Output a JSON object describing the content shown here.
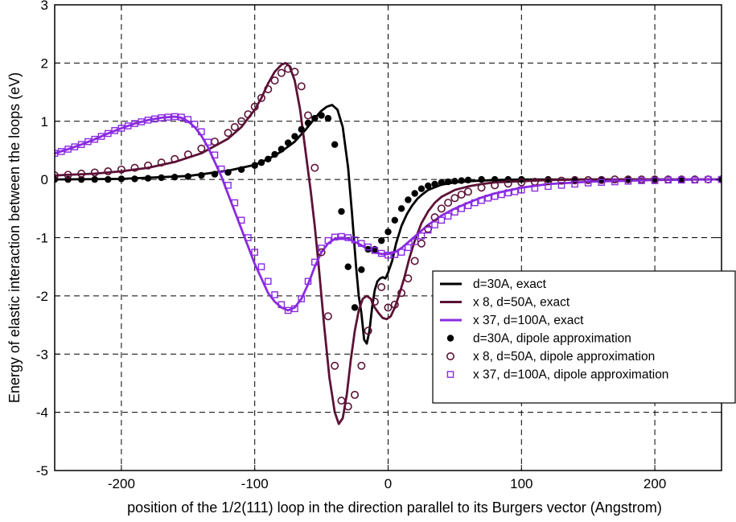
{
  "chart_data": {
    "type": "line",
    "title": "",
    "xlabel": "position of the 1/2(111) loop in the direction parallel to its Burgers vector (Angstrom)",
    "ylabel": "Energy of elastic interaction between the loops (eV)",
    "xlim": [
      -250,
      250
    ],
    "ylim": [
      -5,
      3
    ],
    "xticks": [
      -200,
      -100,
      0,
      100,
      200
    ],
    "yticks": [
      -5,
      -4,
      -3,
      -2,
      -1,
      0,
      1,
      2,
      3
    ],
    "grid": true,
    "legend_position": "lower-right",
    "series": [
      {
        "name": "d=30A, exact",
        "style": "line",
        "color": "#000000",
        "x": [
          -250,
          -200,
          -150,
          -120,
          -100,
          -90,
          -80,
          -70,
          -62,
          -55,
          -50,
          -46,
          -42,
          -38,
          -34,
          -30,
          -27,
          -24,
          -22,
          -20,
          -18,
          -16,
          -14,
          -12,
          -10,
          -8,
          -6,
          -4,
          -2,
          0,
          3,
          6,
          10,
          14,
          18,
          22,
          26,
          30,
          40,
          50,
          60,
          80,
          100,
          150,
          200,
          250
        ],
        "y": [
          0.0,
          0.01,
          0.06,
          0.15,
          0.25,
          0.35,
          0.48,
          0.65,
          0.85,
          1.05,
          1.18,
          1.25,
          1.28,
          1.2,
          0.9,
          0.2,
          -0.6,
          -1.5,
          -2.0,
          -2.3,
          -2.75,
          -2.82,
          -2.6,
          -2.2,
          -1.9,
          -1.75,
          -1.7,
          -1.68,
          -1.7,
          -1.6,
          -1.4,
          -1.1,
          -0.8,
          -0.6,
          -0.45,
          -0.33,
          -0.25,
          -0.18,
          -0.09,
          -0.05,
          -0.03,
          -0.01,
          0.0,
          0.0,
          0.0,
          0.0
        ]
      },
      {
        "name": "x 8, d=50A, exact",
        "style": "line",
        "color": "#5c1236",
        "x": [
          -250,
          -220,
          -200,
          -180,
          -160,
          -140,
          -120,
          -110,
          -100,
          -95,
          -90,
          -85,
          -80,
          -77,
          -74,
          -70,
          -66,
          -62,
          -58,
          -55,
          -52,
          -48,
          -44,
          -40,
          -37,
          -34,
          -31,
          -28,
          -25,
          -22,
          -19,
          -16,
          -13,
          -10,
          -7,
          -4,
          -1,
          2,
          5,
          8,
          12,
          16,
          20,
          25,
          30,
          35,
          40,
          50,
          60,
          70,
          80,
          100,
          120,
          150,
          200,
          250
        ],
        "y": [
          0.07,
          0.1,
          0.14,
          0.2,
          0.3,
          0.45,
          0.7,
          0.9,
          1.2,
          1.4,
          1.65,
          1.85,
          1.97,
          2.0,
          1.95,
          1.7,
          1.2,
          0.5,
          -0.2,
          -0.8,
          -1.5,
          -2.5,
          -3.4,
          -4.0,
          -4.2,
          -4.1,
          -3.7,
          -3.1,
          -2.6,
          -2.25,
          -2.05,
          -2.0,
          -2.05,
          -2.2,
          -2.3,
          -2.38,
          -2.4,
          -2.35,
          -2.2,
          -2.0,
          -1.7,
          -1.35,
          -1.05,
          -0.75,
          -0.55,
          -0.4,
          -0.3,
          -0.18,
          -0.12,
          -0.08,
          -0.05,
          -0.03,
          -0.01,
          0.0,
          0.0,
          0.0
        ]
      },
      {
        "name": "x 37, d=100A, exact",
        "style": "line",
        "color": "#8a2be2",
        "x": [
          -250,
          -240,
          -230,
          -220,
          -210,
          -200,
          -190,
          -180,
          -170,
          -160,
          -155,
          -150,
          -145,
          -140,
          -135,
          -130,
          -125,
          -120,
          -115,
          -110,
          -105,
          -100,
          -95,
          -90,
          -85,
          -80,
          -75,
          -70,
          -65,
          -60,
          -55,
          -50,
          -45,
          -40,
          -35,
          -30,
          -25,
          -20,
          -15,
          -10,
          -5,
          0,
          5,
          10,
          15,
          20,
          25,
          30,
          40,
          50,
          60,
          70,
          80,
          100,
          120,
          150,
          200,
          250
        ],
        "y": [
          0.45,
          0.52,
          0.6,
          0.69,
          0.79,
          0.88,
          0.96,
          1.02,
          1.06,
          1.08,
          1.06,
          1.0,
          0.9,
          0.75,
          0.55,
          0.3,
          0.05,
          -0.25,
          -0.55,
          -0.85,
          -1.15,
          -1.45,
          -1.7,
          -1.95,
          -2.1,
          -2.2,
          -2.25,
          -2.2,
          -2.05,
          -1.8,
          -1.5,
          -1.25,
          -1.1,
          -1.02,
          -1.0,
          -1.02,
          -1.07,
          -1.13,
          -1.2,
          -1.25,
          -1.28,
          -1.28,
          -1.25,
          -1.18,
          -1.08,
          -0.98,
          -0.88,
          -0.78,
          -0.62,
          -0.5,
          -0.4,
          -0.31,
          -0.24,
          -0.14,
          -0.08,
          -0.04,
          -0.01,
          0.0
        ]
      },
      {
        "name": "d=30A, dipole approximation",
        "style": "filled-circle",
        "color": "#000000",
        "x": [
          -250,
          -240,
          -230,
          -220,
          -210,
          -200,
          -190,
          -180,
          -170,
          -160,
          -150,
          -140,
          -130,
          -120,
          -110,
          -100,
          -95,
          -90,
          -85,
          -80,
          -75,
          -70,
          -65,
          -60,
          -55,
          -50,
          -45,
          -40,
          -35,
          -30,
          -25,
          -20,
          -15,
          -10,
          -5,
          0,
          5,
          10,
          15,
          20,
          25,
          30,
          35,
          40,
          45,
          50,
          55,
          60,
          70,
          80,
          90,
          100,
          120,
          140,
          160,
          180,
          200,
          220,
          250
        ],
        "y": [
          0.0,
          0.0,
          0.0,
          0.0,
          0.0,
          0.01,
          0.01,
          0.02,
          0.03,
          0.04,
          0.05,
          0.07,
          0.09,
          0.12,
          0.17,
          0.24,
          0.29,
          0.35,
          0.43,
          0.52,
          0.63,
          0.74,
          0.86,
          0.97,
          1.05,
          1.1,
          1.05,
          0.6,
          -0.55,
          -1.5,
          -2.2,
          -1.55,
          -1.2,
          -1.2,
          -1.05,
          -0.9,
          -0.7,
          -0.5,
          -0.35,
          -0.24,
          -0.16,
          -0.11,
          -0.08,
          -0.05,
          -0.04,
          -0.03,
          -0.02,
          -0.01,
          0.0,
          0.0,
          0.0,
          0.0,
          0.0,
          0.0,
          0.0,
          0.0,
          0.0,
          0.0,
          0.0
        ]
      },
      {
        "name": "x 8, d=50A, dipole approximation",
        "style": "open-circle",
        "color": "#5c1236",
        "x": [
          -250,
          -240,
          -230,
          -220,
          -210,
          -200,
          -190,
          -180,
          -170,
          -160,
          -150,
          -140,
          -130,
          -120,
          -115,
          -110,
          -105,
          -100,
          -95,
          -90,
          -85,
          -80,
          -75,
          -70,
          -65,
          -60,
          -55,
          -50,
          -45,
          -40,
          -35,
          -30,
          -25,
          -20,
          -15,
          -10,
          -5,
          0,
          5,
          10,
          15,
          20,
          25,
          30,
          35,
          40,
          45,
          50,
          55,
          60,
          70,
          80,
          90,
          100,
          110,
          120,
          130,
          140,
          150,
          160,
          170,
          180,
          190,
          200,
          210,
          220,
          230,
          240,
          250
        ],
        "y": [
          0.07,
          0.08,
          0.1,
          0.12,
          0.14,
          0.17,
          0.2,
          0.24,
          0.29,
          0.35,
          0.43,
          0.53,
          0.65,
          0.8,
          0.9,
          1.0,
          1.12,
          1.25,
          1.4,
          1.55,
          1.7,
          1.83,
          1.9,
          1.85,
          1.6,
          1.1,
          0.2,
          -1.25,
          -2.35,
          -3.2,
          -3.8,
          -3.9,
          -3.7,
          -3.2,
          -2.6,
          -2.1,
          -1.85,
          -2.2,
          -2.15,
          -1.95,
          -1.7,
          -1.4,
          -1.1,
          -0.85,
          -0.65,
          -0.5,
          -0.4,
          -0.32,
          -0.26,
          -0.21,
          -0.14,
          -0.1,
          -0.07,
          -0.05,
          -0.04,
          -0.03,
          -0.02,
          -0.015,
          -0.01,
          -0.01,
          0.0,
          0.0,
          0.0,
          0.0,
          0.0,
          0.0,
          0.0,
          0.0,
          0.0
        ]
      },
      {
        "name": "x 37, d=100A, dipole approximation",
        "style": "open-square",
        "color": "#8a2be2",
        "x": [
          -250,
          -245,
          -240,
          -235,
          -230,
          -225,
          -220,
          -215,
          -210,
          -205,
          -200,
          -195,
          -190,
          -185,
          -180,
          -175,
          -170,
          -165,
          -160,
          -155,
          -150,
          -145,
          -140,
          -135,
          -130,
          -125,
          -120,
          -115,
          -110,
          -105,
          -100,
          -95,
          -90,
          -85,
          -80,
          -75,
          -70,
          -65,
          -60,
          -55,
          -50,
          -45,
          -40,
          -35,
          -30,
          -25,
          -20,
          -15,
          -10,
          -5,
          0,
          5,
          10,
          15,
          20,
          25,
          30,
          35,
          40,
          45,
          50,
          55,
          60,
          65,
          70,
          75,
          80,
          85,
          90,
          95,
          100,
          110,
          120,
          130,
          140,
          150,
          160,
          170,
          180,
          190,
          200,
          210,
          220,
          230,
          240,
          250
        ],
        "y": [
          0.45,
          0.48,
          0.52,
          0.56,
          0.6,
          0.65,
          0.69,
          0.74,
          0.79,
          0.84,
          0.88,
          0.92,
          0.96,
          0.99,
          1.02,
          1.04,
          1.06,
          1.07,
          1.08,
          1.07,
          1.03,
          0.95,
          0.82,
          0.64,
          0.42,
          0.18,
          -0.1,
          -0.4,
          -0.7,
          -1.0,
          -1.25,
          -1.5,
          -1.75,
          -1.98,
          -2.15,
          -2.25,
          -2.22,
          -2.05,
          -1.75,
          -1.42,
          -1.18,
          -1.05,
          -0.99,
          -0.98,
          -1.0,
          -1.04,
          -1.1,
          -1.16,
          -1.22,
          -1.27,
          -1.3,
          -1.29,
          -1.25,
          -1.17,
          -1.07,
          -0.97,
          -0.87,
          -0.78,
          -0.7,
          -0.63,
          -0.56,
          -0.5,
          -0.45,
          -0.4,
          -0.36,
          -0.32,
          -0.29,
          -0.26,
          -0.23,
          -0.21,
          -0.18,
          -0.15,
          -0.12,
          -0.1,
          -0.08,
          -0.06,
          -0.05,
          -0.04,
          -0.03,
          -0.02,
          -0.02,
          -0.01,
          -0.01,
          -0.01,
          0.0,
          0.0
        ]
      }
    ]
  }
}
